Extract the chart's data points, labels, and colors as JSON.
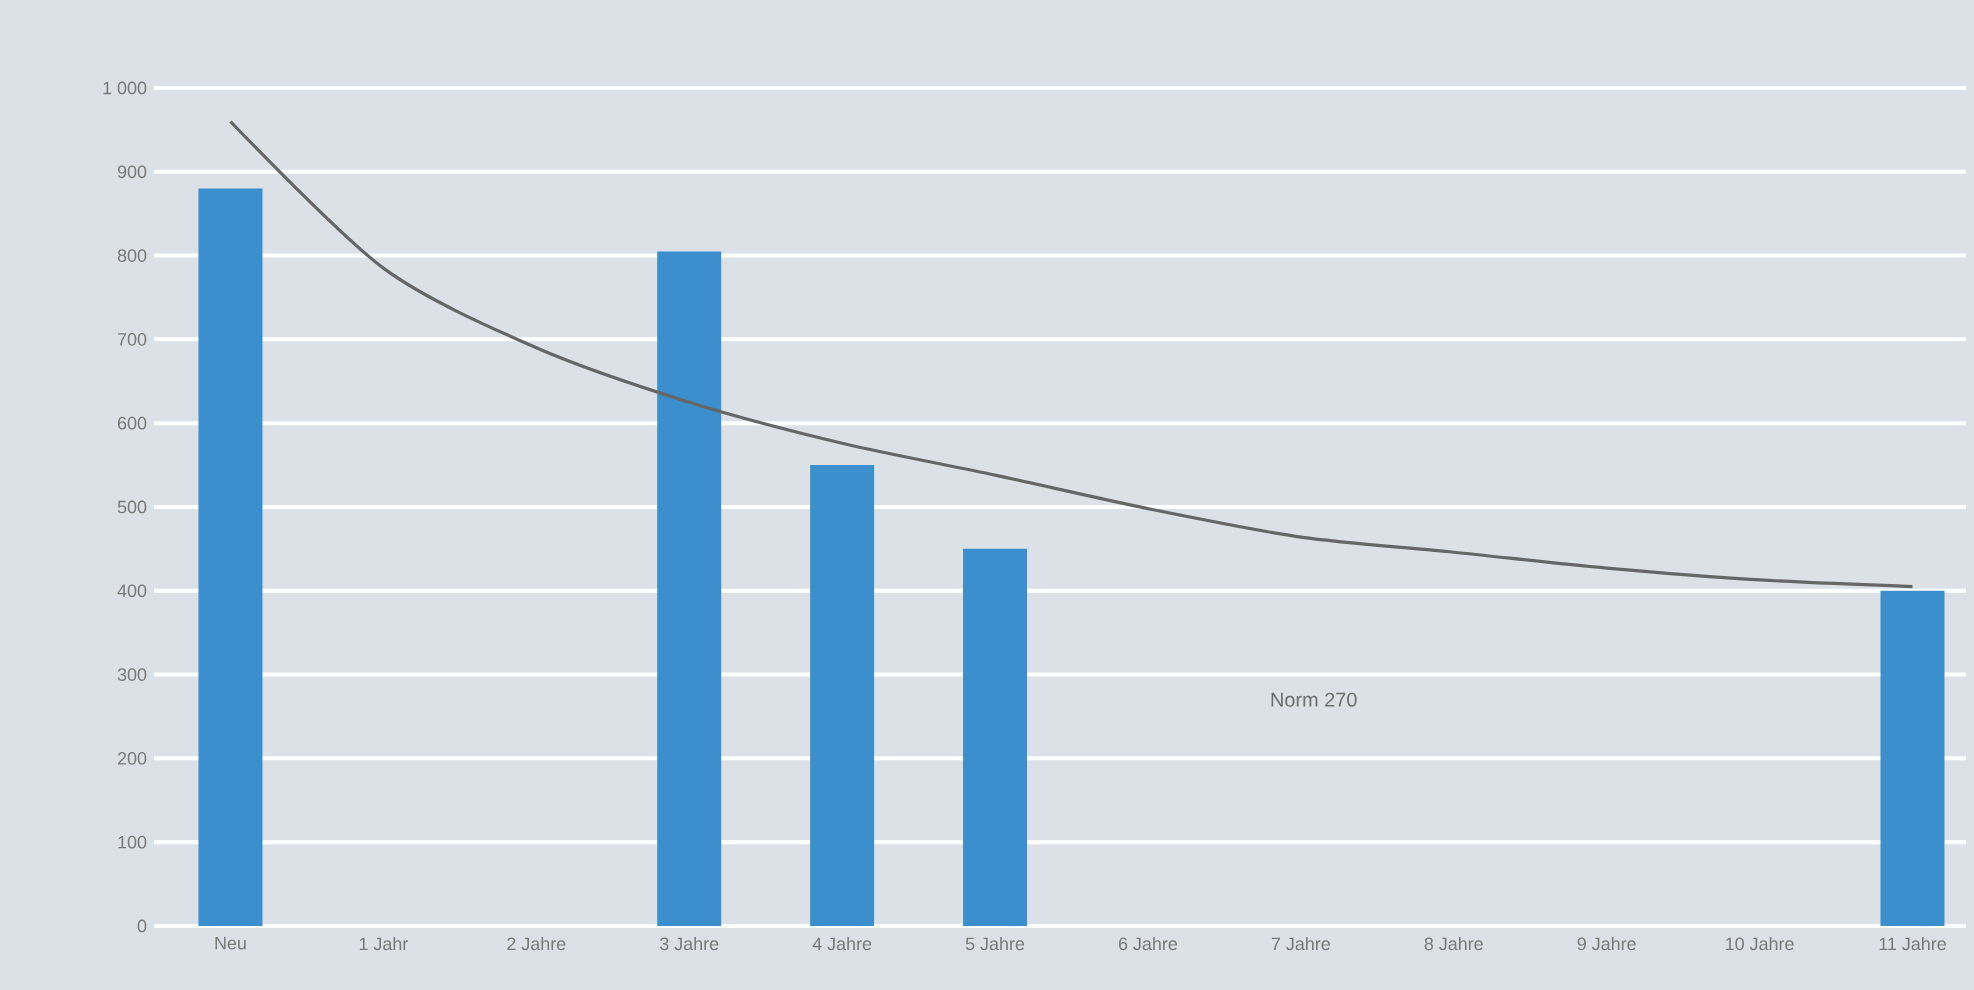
{
  "chart_data": {
    "type": "bar",
    "categories": [
      "Neu",
      "1 Jahr",
      "2 Jahre",
      "3 Jahre",
      "4 Jahre",
      "5 Jahre",
      "6 Jahre",
      "7 Jahre",
      "8 Jahre",
      "9 Jahre",
      "10 Jahre",
      "11 Jahre"
    ],
    "series": [
      {
        "color": "#3b8fcc",
        "values": [
          880,
          null,
          null,
          805,
          550,
          450,
          null,
          null,
          null,
          null,
          null,
          400
        ]
      },
      {
        "type": "line",
        "color": "#666666",
        "values": [
          960,
          785,
          690,
          625,
          576,
          538,
          498,
          464,
          446,
          427,
          413,
          405
        ]
      }
    ],
    "ylim": [
      0,
      1000
    ],
    "yticks": [
      0,
      100,
      200,
      300,
      400,
      500,
      600,
      700,
      800,
      900,
      {
        "value": 1000,
        "label": "1 000"
      }
    ],
    "grid": "y",
    "annotations": [
      "Norm 270"
    ]
  }
}
